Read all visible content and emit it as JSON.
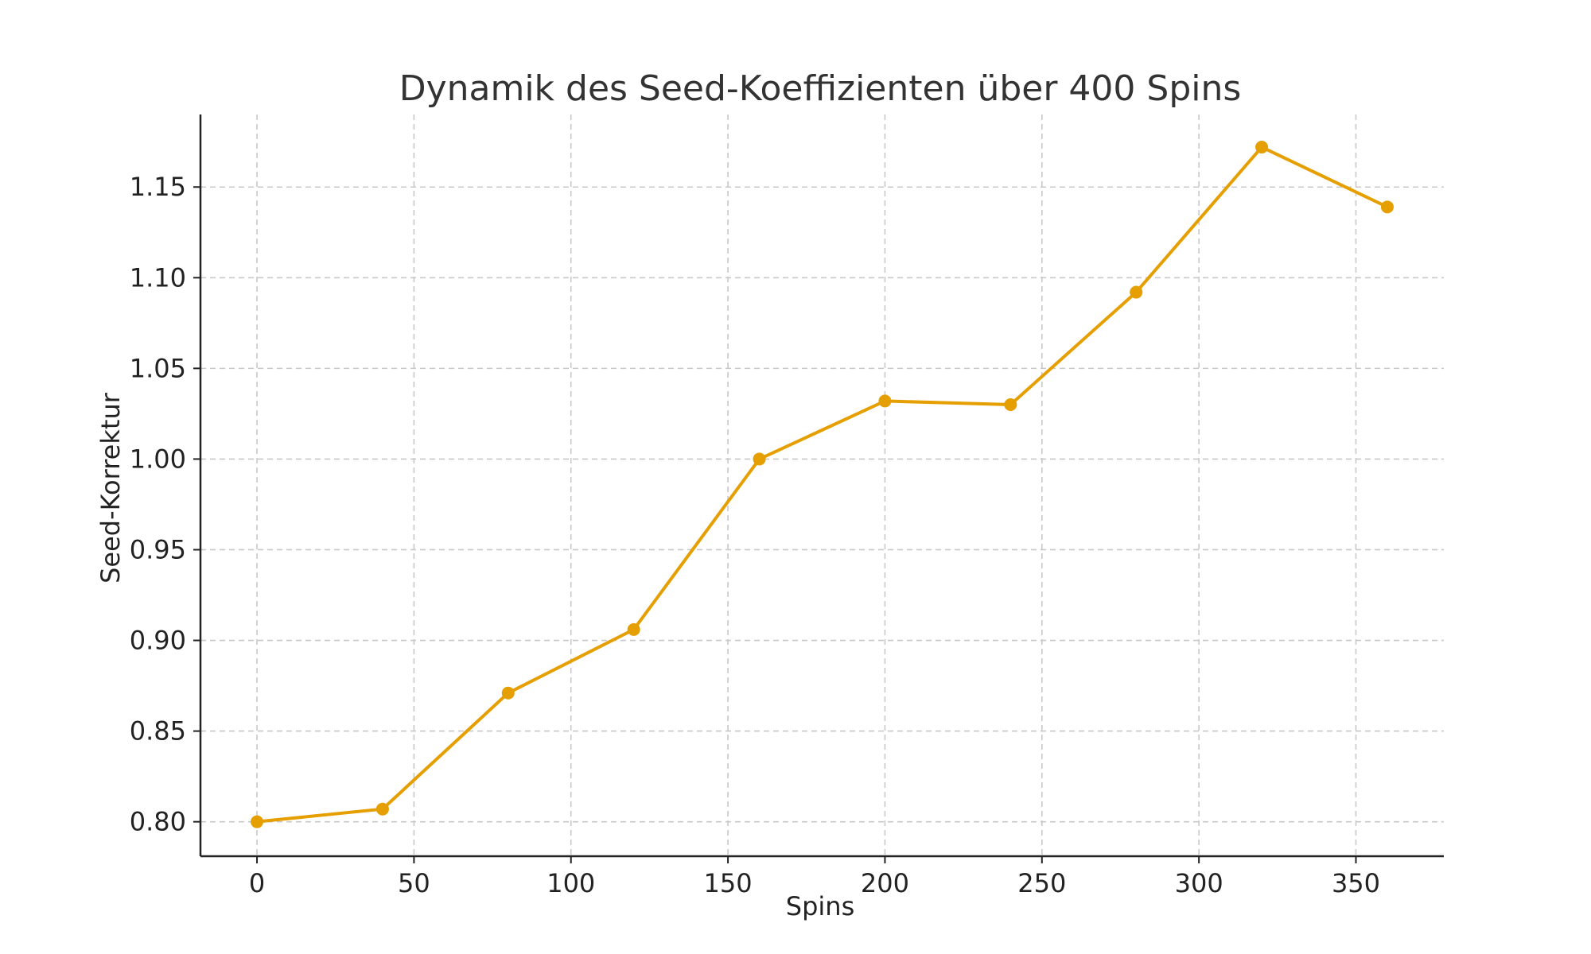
{
  "chart_data": {
    "type": "line",
    "title": "Dynamik des Seed-Koeffizienten über 400 Spins",
    "xlabel": "Spins",
    "ylabel": "Seed-Korrektur",
    "xlim": [
      -18,
      378
    ],
    "ylim": [
      0.781,
      1.19
    ],
    "x_ticks": [
      0,
      50,
      100,
      150,
      200,
      250,
      300,
      350
    ],
    "x_tick_labels": [
      "0",
      "50",
      "100",
      "150",
      "200",
      "250",
      "300",
      "350"
    ],
    "y_ticks": [
      0.8,
      0.85,
      0.9,
      0.95,
      1.0,
      1.05,
      1.1,
      1.15
    ],
    "y_tick_labels": [
      "0.80",
      "0.85",
      "0.90",
      "0.95",
      "1.00",
      "1.05",
      "1.10",
      "1.15"
    ],
    "grid": true,
    "series": [
      {
        "color": "#e69f00",
        "marker": "circle",
        "x": [
          0,
          40,
          80,
          120,
          160,
          200,
          240,
          280,
          320,
          360
        ],
        "y": [
          0.8,
          0.807,
          0.871,
          0.906,
          1.0,
          1.032,
          1.03,
          1.092,
          1.172,
          1.139
        ]
      }
    ]
  }
}
